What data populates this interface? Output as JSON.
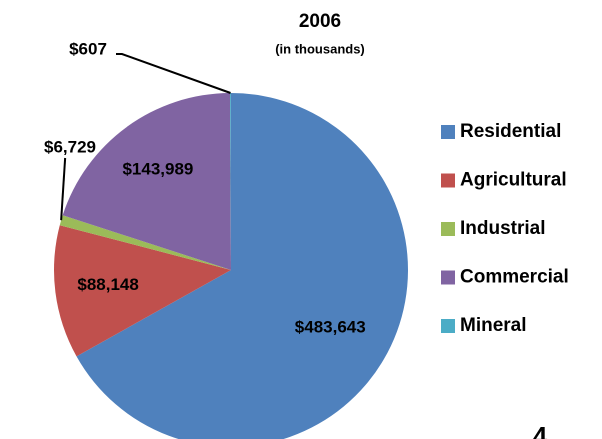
{
  "chart_data": {
    "type": "pie",
    "title": "2006",
    "subtitle": "(in thousands)",
    "categories": [
      "Residential",
      "Agricultural",
      "Industrial",
      "Commercial",
      "Mineral"
    ],
    "values": [
      483643,
      88148,
      6729,
      143989,
      607
    ],
    "value_labels": [
      "$483,643",
      "$88,148",
      "$6,729",
      "$143,989",
      "$607"
    ],
    "colors": [
      "#4f81bd",
      "#c0504d",
      "#9bbb59",
      "#8064a2",
      "#4bacc6"
    ],
    "legend": "right",
    "page_number": "4"
  }
}
